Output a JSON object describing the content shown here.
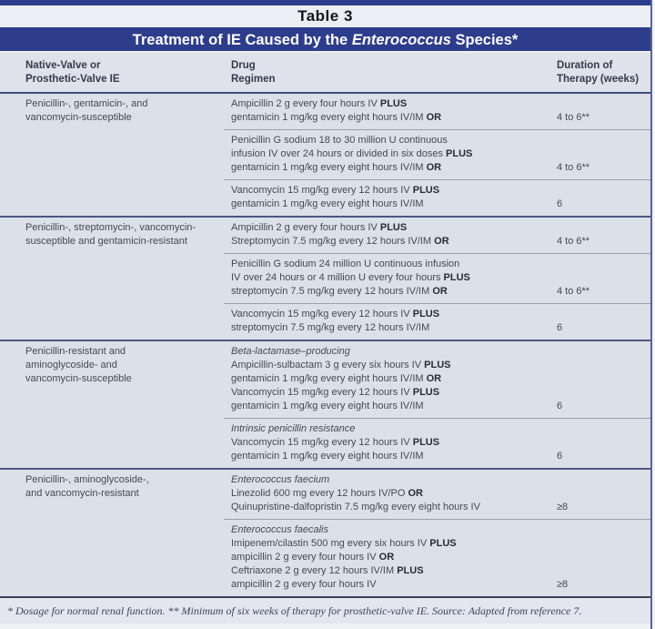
{
  "table_label": "Table 3",
  "title": {
    "prefix": "Treatment of IE Caused by the ",
    "italic": "Enterococcus",
    "suffix": " Species*"
  },
  "columns": [
    {
      "lines": [
        "Native-Valve or",
        "Prosthetic-Valve IE"
      ]
    },
    {
      "lines": [
        "Drug",
        "Regimen"
      ]
    },
    {
      "lines": [
        "Duration of",
        "Therapy (weeks)"
      ]
    }
  ],
  "sections": [
    {
      "condition": [
        "Penicillin-, gentamicin-, and",
        "vancomycin-susceptible"
      ],
      "rows": [
        {
          "lines": [
            [
              {
                "t": "Ampicillin 2 g every four hours IV "
              },
              {
                "t": "PLUS",
                "b": true
              }
            ],
            [
              {
                "t": "gentamicin 1 mg/kg every eight hours IV/IM "
              },
              {
                "t": "OR",
                "b": true
              }
            ]
          ],
          "duration": "4 to 6**"
        },
        {
          "lines": [
            [
              {
                "t": "Penicillin G sodium 18 to 30 million U continuous"
              }
            ],
            [
              {
                "t": "infusion IV over 24 hours or divided in six doses "
              },
              {
                "t": "PLUS",
                "b": true
              }
            ],
            [
              {
                "t": "gentamicin 1 mg/kg every eight hours IV/IM "
              },
              {
                "t": "OR",
                "b": true
              }
            ]
          ],
          "duration": "4 to 6**"
        },
        {
          "lines": [
            [
              {
                "t": "Vancomycin 15 mg/kg every 12 hours IV "
              },
              {
                "t": "PLUS",
                "b": true
              }
            ],
            [
              {
                "t": "gentamicin 1 mg/kg every eight hours IV/IM"
              }
            ]
          ],
          "duration": "6"
        }
      ]
    },
    {
      "condition": [
        "Penicillin-, streptomycin-, vancomycin-",
        "susceptible and gentamicin-resistant"
      ],
      "rows": [
        {
          "lines": [
            [
              {
                "t": "Ampicillin 2 g every four hours IV "
              },
              {
                "t": "PLUS",
                "b": true
              }
            ],
            [
              {
                "t": "Streptomycin 7.5 mg/kg every 12 hours IV/IM "
              },
              {
                "t": "OR",
                "b": true
              }
            ]
          ],
          "duration": "4 to 6**"
        },
        {
          "lines": [
            [
              {
                "t": "Penicillin G sodium 24 million U continuous infusion"
              }
            ],
            [
              {
                "t": "IV over 24 hours or 4 million U every four hours "
              },
              {
                "t": "PLUS",
                "b": true
              }
            ],
            [
              {
                "t": "streptomycin 7.5 mg/kg every 12 hours IV/IM "
              },
              {
                "t": "OR",
                "b": true
              }
            ]
          ],
          "duration": "4 to 6**"
        },
        {
          "lines": [
            [
              {
                "t": "Vancomycin 15 mg/kg every 12 hours IV "
              },
              {
                "t": "PLUS",
                "b": true
              }
            ],
            [
              {
                "t": "streptomycin 7.5 mg/kg every 12 hours IV/IM"
              }
            ]
          ],
          "duration": "6"
        }
      ]
    },
    {
      "condition": [
        "Penicillin-resistant and",
        "aminoglycoside- and",
        "vancomycin-susceptible"
      ],
      "rows": [
        {
          "lines": [
            [
              {
                "t": "Beta-lactamase–producing",
                "i": true
              }
            ],
            [
              {
                "t": "Ampicillin-sulbactam 3 g every six hours IV "
              },
              {
                "t": "PLUS",
                "b": true
              }
            ],
            [
              {
                "t": "gentamicin 1 mg/kg every eight hours IV/IM "
              },
              {
                "t": "OR",
                "b": true
              }
            ],
            [
              {
                "t": "Vancomycin 15 mg/kg every 12 hours IV "
              },
              {
                "t": "PLUS",
                "b": true
              }
            ],
            [
              {
                "t": "gentamicin 1 mg/kg every eight hours IV/IM"
              }
            ]
          ],
          "duration": "6"
        },
        {
          "lines": [
            [
              {
                "t": "Intrinsic penicillin resistance",
                "i": true
              }
            ],
            [
              {
                "t": "Vancomycin 15 mg/kg every 12 hours IV "
              },
              {
                "t": "PLUS",
                "b": true
              }
            ],
            [
              {
                "t": "gentamicin 1 mg/kg every eight hours IV/IM"
              }
            ]
          ],
          "duration": "6"
        }
      ]
    },
    {
      "condition": [
        "Penicillin-, aminoglycoside-,",
        "and vancomycin-resistant"
      ],
      "rows": [
        {
          "lines": [
            [
              {
                "t": "Enterococcus faecium",
                "i": true
              }
            ],
            [
              {
                "t": "Linezolid 600 mg every 12 hours IV/PO "
              },
              {
                "t": "OR",
                "b": true
              }
            ],
            [
              {
                "t": "Quinupristine-dalfopristin 7.5 mg/kg every eight hours IV"
              }
            ]
          ],
          "duration": "≥8"
        },
        {
          "lines": [
            [
              {
                "t": "Enterococcus faecalis",
                "i": true
              }
            ],
            [
              {
                "t": "Imipenem/cilastin 500 mg every six hours IV "
              },
              {
                "t": "PLUS",
                "b": true
              }
            ],
            [
              {
                "t": "ampicillin 2 g every four hours IV "
              },
              {
                "t": "OR",
                "b": true
              }
            ],
            [
              {
                "t": "Ceftriaxone 2 g every 12 hours IV/IM "
              },
              {
                "t": "PLUS",
                "b": true
              }
            ],
            [
              {
                "t": "ampicillin 2 g every four hours IV"
              }
            ]
          ],
          "duration": "≥8"
        }
      ]
    }
  ],
  "footnote": "* Dosage for normal renal function. ** Minimum of six weeks of therapy for prosthetic-valve IE. Source: Adapted from reference 7.",
  "colors": {
    "banner_navy": "#2d3d8b",
    "body_background": "#dce0e9",
    "section_divider": "#4d5781",
    "row_divider": "#99a0b2",
    "text": "#424957"
  }
}
